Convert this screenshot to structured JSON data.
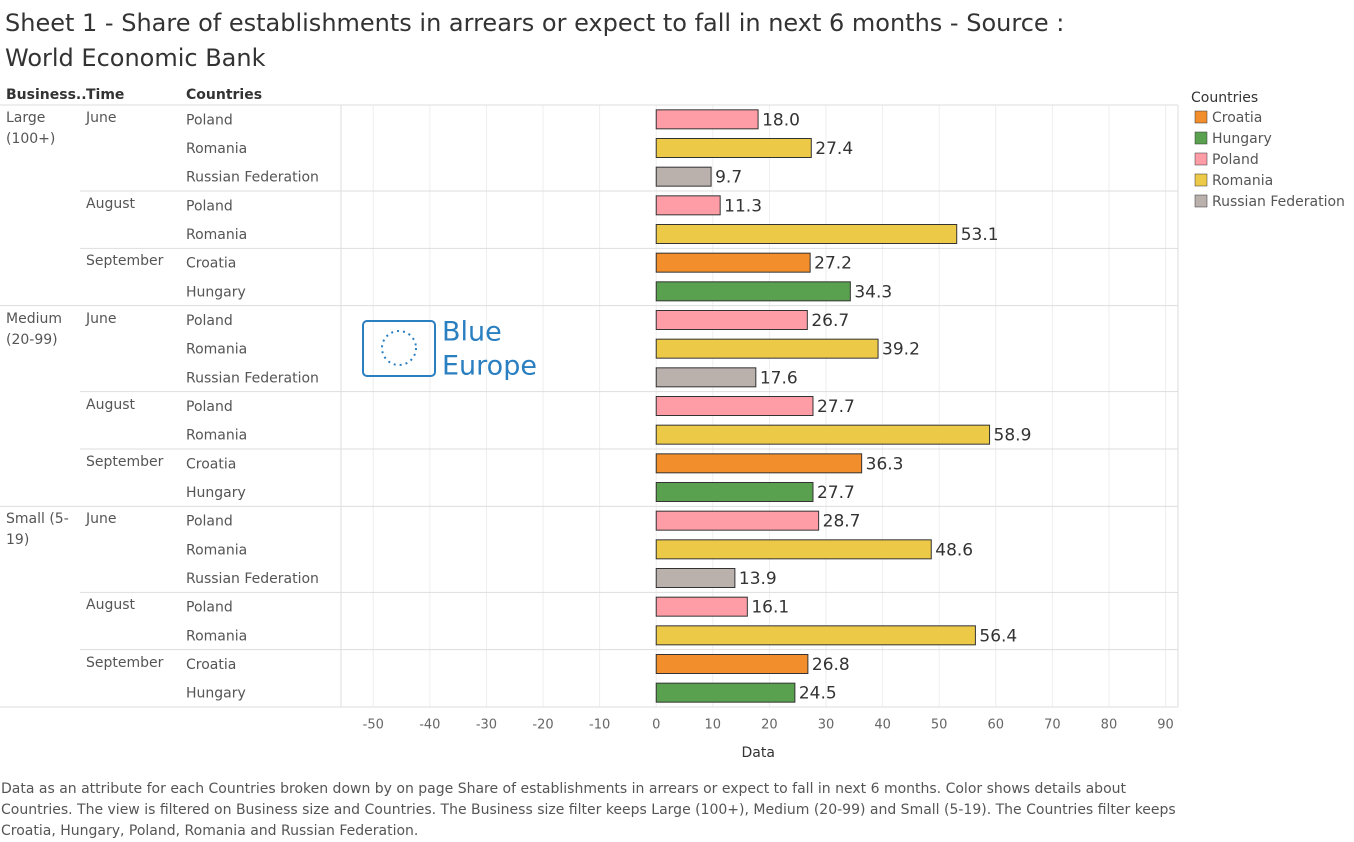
{
  "chart_data": {
    "type": "bar",
    "title": "Sheet 1 - Share of establishments in arrears or expect to fall in next 6 months - Source : World Economic Bank",
    "row_headers": [
      "Business..",
      "Time",
      "Countries"
    ],
    "xlabel": "Data",
    "watermark": [
      "Blue",
      "Europe"
    ],
    "xlim": [
      -55.7,
      92.2
    ],
    "xticks": [
      -50,
      -40,
      -30,
      -20,
      -10,
      0,
      10,
      20,
      30,
      40,
      50,
      60,
      70,
      80,
      90
    ],
    "grid": true,
    "legend": {
      "title": "Countries",
      "position": "right",
      "items": [
        {
          "name": "Croatia",
          "color": "#f28e2b"
        },
        {
          "name": "Hungary",
          "color": "#59a14f"
        },
        {
          "name": "Poland",
          "color": "#ff9da7"
        },
        {
          "name": "Romania",
          "color": "#edc948"
        },
        {
          "name": "Russian Federation",
          "color": "#bab0ac"
        }
      ]
    },
    "groups": [
      {
        "business": "Large (100+)",
        "periods": [
          {
            "time": "June",
            "countries": [
              "Poland",
              "Romania",
              "Russian Federation"
            ],
            "values": [
              18.0,
              27.4,
              9.7
            ],
            "value_labels": [
              "18.0",
              "27.4",
              "9.7"
            ]
          },
          {
            "time": "August",
            "countries": [
              "Poland",
              "Romania"
            ],
            "values": [
              11.3,
              53.1
            ],
            "value_labels": [
              "11.3",
              "53.1"
            ]
          },
          {
            "time": "September",
            "countries": [
              "Croatia",
              "Hungary"
            ],
            "values": [
              27.2,
              34.3
            ],
            "value_labels": [
              "27.2",
              "34.3"
            ]
          }
        ]
      },
      {
        "business": "Medium (20-99)",
        "periods": [
          {
            "time": "June",
            "countries": [
              "Poland",
              "Romania",
              "Russian Federation"
            ],
            "values": [
              26.7,
              39.2,
              17.6
            ],
            "value_labels": [
              "26.7",
              "39.2",
              "17.6"
            ]
          },
          {
            "time": "August",
            "countries": [
              "Poland",
              "Romania"
            ],
            "values": [
              27.7,
              58.9
            ],
            "value_labels": [
              "27.7",
              "58.9"
            ]
          },
          {
            "time": "September",
            "countries": [
              "Croatia",
              "Hungary"
            ],
            "values": [
              36.3,
              27.7
            ],
            "value_labels": [
              "36.3",
              "27.7"
            ]
          }
        ]
      },
      {
        "business": "Small (5-19)",
        "periods": [
          {
            "time": "June",
            "countries": [
              "Poland",
              "Romania",
              "Russian Federation"
            ],
            "values": [
              28.7,
              48.6,
              13.9
            ],
            "value_labels": [
              "28.7",
              "48.6",
              "13.9"
            ]
          },
          {
            "time": "August",
            "countries": [
              "Poland",
              "Romania"
            ],
            "values": [
              16.1,
              56.4
            ],
            "value_labels": [
              "16.1",
              "56.4"
            ]
          },
          {
            "time": "September",
            "countries": [
              "Croatia",
              "Hungary"
            ],
            "values": [
              26.8,
              24.5
            ],
            "value_labels": [
              "26.8",
              "24.5"
            ]
          }
        ]
      }
    ],
    "caption": "Data as an attribute for each Countries broken down by  on page Share of establishments in arrears or expect to fall in next 6 months.  Color shows details about Countries. The view is filtered on Business size and Countries. The Business size filter keeps Large (100+), Medium (20-99) and Small (5-19). The Countries filter keeps Croatia, Hungary, Poland, Romania and Russian Federation."
  }
}
